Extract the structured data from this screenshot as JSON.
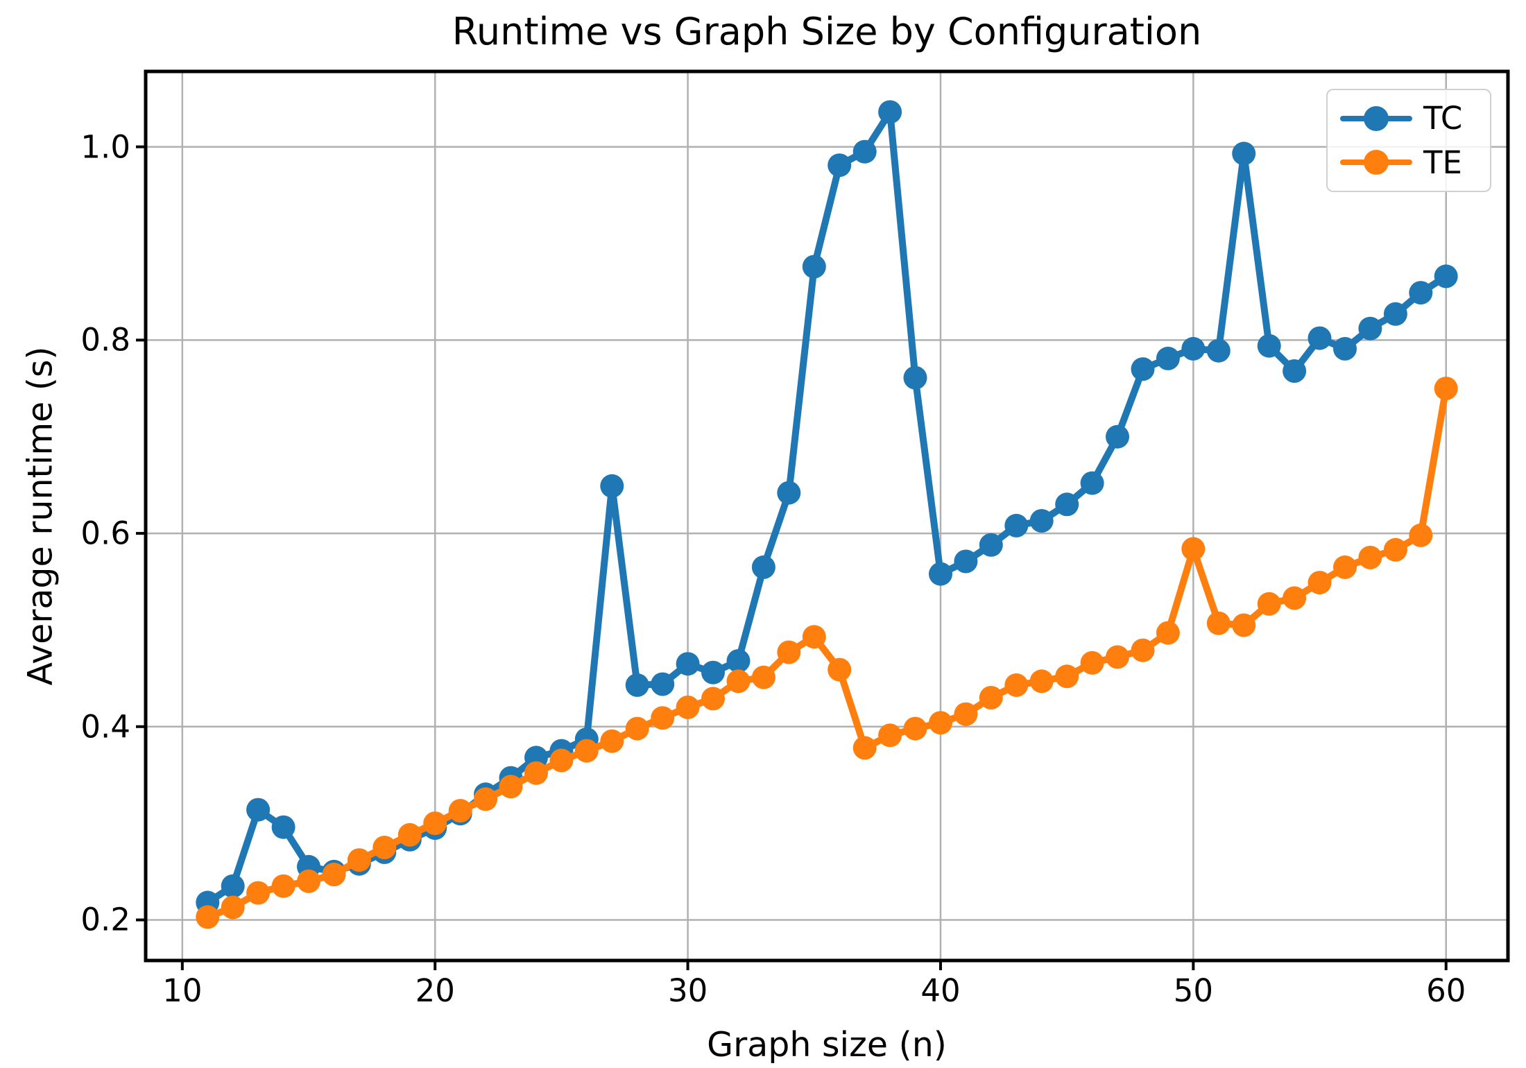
{
  "chart_data": {
    "type": "line",
    "title": "Runtime vs Graph Size by Configuration",
    "xlabel": "Graph size (n)",
    "ylabel": "Average runtime (s)",
    "x": [
      11,
      12,
      13,
      14,
      15,
      16,
      17,
      18,
      19,
      20,
      21,
      22,
      23,
      24,
      25,
      26,
      27,
      28,
      29,
      30,
      31,
      32,
      33,
      34,
      35,
      36,
      37,
      38,
      39,
      40,
      41,
      42,
      43,
      44,
      45,
      46,
      47,
      48,
      49,
      50,
      51,
      52,
      53,
      54,
      55,
      56,
      57,
      58,
      59,
      60
    ],
    "series": [
      {
        "name": "TC",
        "color": "#1f77b4",
        "values": [
          0.218,
          0.235,
          0.314,
          0.296,
          0.255,
          0.25,
          0.258,
          0.27,
          0.283,
          0.295,
          0.31,
          0.33,
          0.347,
          0.368,
          0.375,
          0.387,
          0.649,
          0.443,
          0.444,
          0.465,
          0.456,
          0.468,
          0.565,
          0.642,
          0.876,
          0.981,
          0.995,
          1.036,
          0.761,
          0.558,
          0.571,
          0.588,
          0.608,
          0.613,
          0.63,
          0.652,
          0.7,
          0.77,
          0.781,
          0.791,
          0.789,
          0.993,
          0.794,
          0.768,
          0.802,
          0.791,
          0.812,
          0.827,
          0.849,
          0.866
        ]
      },
      {
        "name": "TE",
        "color": "#ff7f0e",
        "values": [
          0.203,
          0.213,
          0.228,
          0.235,
          0.24,
          0.247,
          0.262,
          0.275,
          0.288,
          0.3,
          0.313,
          0.325,
          0.338,
          0.352,
          0.365,
          0.375,
          0.385,
          0.398,
          0.409,
          0.42,
          0.429,
          0.447,
          0.451,
          0.477,
          0.493,
          0.459,
          0.378,
          0.391,
          0.398,
          0.404,
          0.413,
          0.43,
          0.443,
          0.447,
          0.452,
          0.466,
          0.472,
          0.479,
          0.497,
          0.584,
          0.507,
          0.505,
          0.527,
          0.533,
          0.549,
          0.565,
          0.575,
          0.583,
          0.598,
          0.75
        ]
      }
    ],
    "xticks": [
      10,
      20,
      30,
      40,
      50,
      60
    ],
    "yticks": [
      0.2,
      0.4,
      0.6,
      0.8,
      1.0
    ],
    "xlim": [
      8.55,
      62.45
    ],
    "ylim": [
      0.158,
      1.078
    ],
    "grid": true,
    "legend_position": "upper right",
    "colors": {
      "grid": "#b0b0b0",
      "spine": "#000000",
      "background": "#ffffff",
      "tc": "#1f77b4",
      "te": "#ff7f0e"
    }
  }
}
